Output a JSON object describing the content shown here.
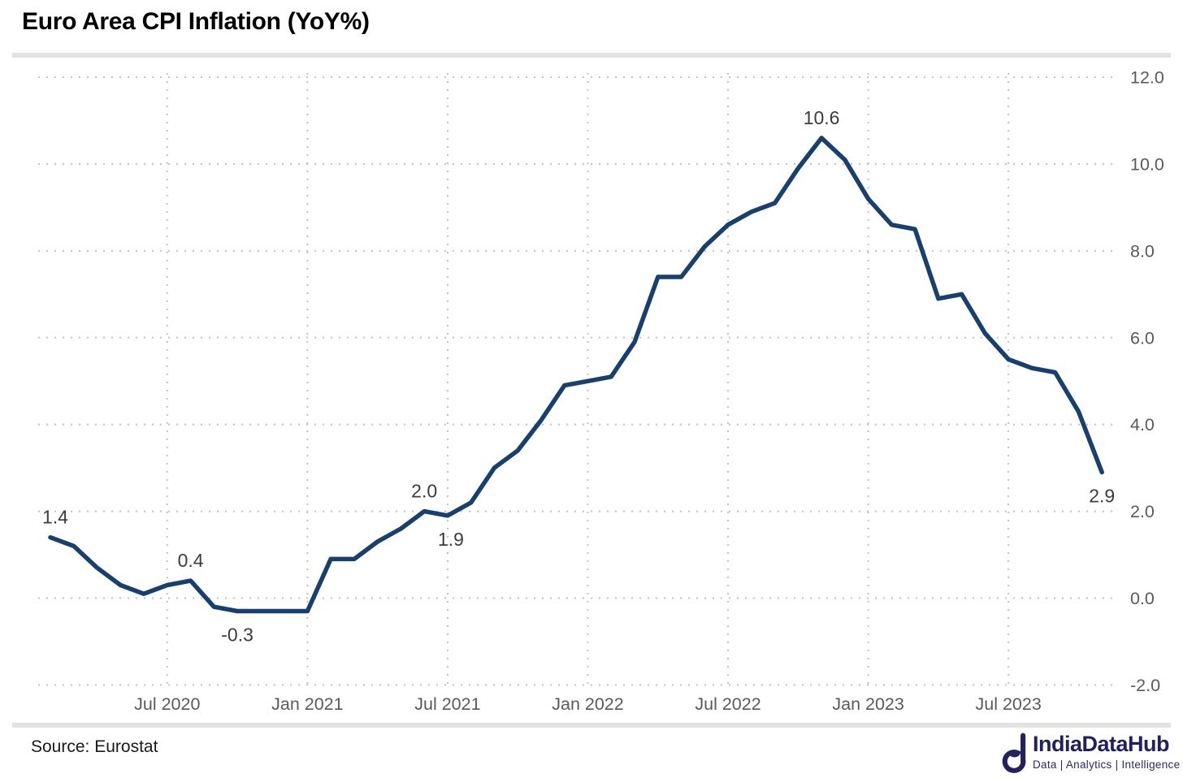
{
  "header": {
    "title": "Euro Area CPI Inflation (YoY%)"
  },
  "footer": {
    "source": "Source: Eurostat",
    "logo": {
      "name": "IndiaDataHub",
      "tagline": "Data | Analytics | Intelligence"
    }
  },
  "colors": {
    "line": "#17406E",
    "grid": "#C2C2C2",
    "axis_text": "#5A5A5A",
    "point_label_text": "#3C3C3C",
    "divider": "#E3E3E3",
    "logo_navy": "#23215E"
  },
  "chart_data": {
    "type": "line",
    "title": "Euro Area CPI Inflation (YoY%)",
    "series_name": "Euro Area CPI Inflation (YoY%)",
    "x_unit": "month",
    "months": [
      "Jan 2020",
      "Feb 2020",
      "Mar 2020",
      "Apr 2020",
      "May 2020",
      "Jun 2020",
      "Jul 2020",
      "Aug 2020",
      "Sep 2020",
      "Oct 2020",
      "Nov 2020",
      "Dec 2020",
      "Jan 2021",
      "Feb 2021",
      "Mar 2021",
      "Apr 2021",
      "May 2021",
      "Jun 2021",
      "Jul 2021",
      "Aug 2021",
      "Sep 2021",
      "Oct 2021",
      "Nov 2021",
      "Dec 2021",
      "Jan 2022",
      "Feb 2022",
      "Mar 2022",
      "Apr 2022",
      "May 2022",
      "Jun 2022",
      "Jul 2022",
      "Aug 2022",
      "Sep 2022",
      "Oct 2022",
      "Nov 2022",
      "Dec 2022",
      "Jan 2023",
      "Feb 2023",
      "Mar 2023",
      "Apr 2023",
      "May 2023",
      "Jun 2023",
      "Jul 2023",
      "Aug 2023",
      "Sep 2023",
      "Oct 2023"
    ],
    "values": [
      1.4,
      1.2,
      0.7,
      0.3,
      0.1,
      0.3,
      0.4,
      -0.2,
      -0.3,
      -0.3,
      -0.3,
      -0.3,
      0.9,
      0.9,
      1.3,
      1.6,
      2.0,
      1.9,
      2.2,
      3.0,
      3.4,
      4.1,
      4.9,
      5.0,
      5.1,
      5.9,
      7.4,
      7.4,
      8.1,
      8.6,
      8.9,
      9.1,
      9.9,
      10.6,
      10.1,
      9.2,
      8.6,
      8.5,
      6.9,
      7.0,
      6.1,
      5.5,
      5.3,
      5.2,
      4.3,
      2.9
    ],
    "ylim": [
      -2.0,
      12.0
    ],
    "grid": "dotted",
    "legend": "none",
    "y_axis_side": "right",
    "y_ticks": [
      {
        "value": -2,
        "label": "-2.0"
      },
      {
        "value": 0,
        "label": "0.0"
      },
      {
        "value": 2,
        "label": "2.0"
      },
      {
        "value": 4,
        "label": "4.0"
      },
      {
        "value": 6,
        "label": "6.0"
      },
      {
        "value": 8,
        "label": "8.0"
      },
      {
        "value": 10,
        "label": "10.0"
      },
      {
        "value": 12,
        "label": "12.0"
      }
    ],
    "x_ticks": [
      {
        "index": 5,
        "label": "Jul 2020"
      },
      {
        "index": 11,
        "label": "Jan 2021"
      },
      {
        "index": 17,
        "label": "Jul 2021"
      },
      {
        "index": 23,
        "label": "Jan 2022"
      },
      {
        "index": 29,
        "label": "Jul 2022"
      },
      {
        "index": 35,
        "label": "Jan 2023"
      },
      {
        "index": 41,
        "label": "Jul 2023"
      }
    ],
    "point_labels": [
      {
        "index": 0,
        "text": "1.4",
        "placement": "above",
        "dx": 6
      },
      {
        "index": 6,
        "text": "0.4",
        "placement": "above",
        "dx": 0
      },
      {
        "index": 8,
        "text": "-0.3",
        "placement": "below",
        "dx": 0
      },
      {
        "index": 16,
        "text": "2.0",
        "placement": "above",
        "dx": 0
      },
      {
        "index": 17,
        "text": "1.9",
        "placement": "below",
        "dx": 4
      },
      {
        "index": 33,
        "text": "10.6",
        "placement": "above",
        "dx": 0
      },
      {
        "index": 45,
        "text": "2.9",
        "placement": "below",
        "dx": 0
      }
    ]
  }
}
